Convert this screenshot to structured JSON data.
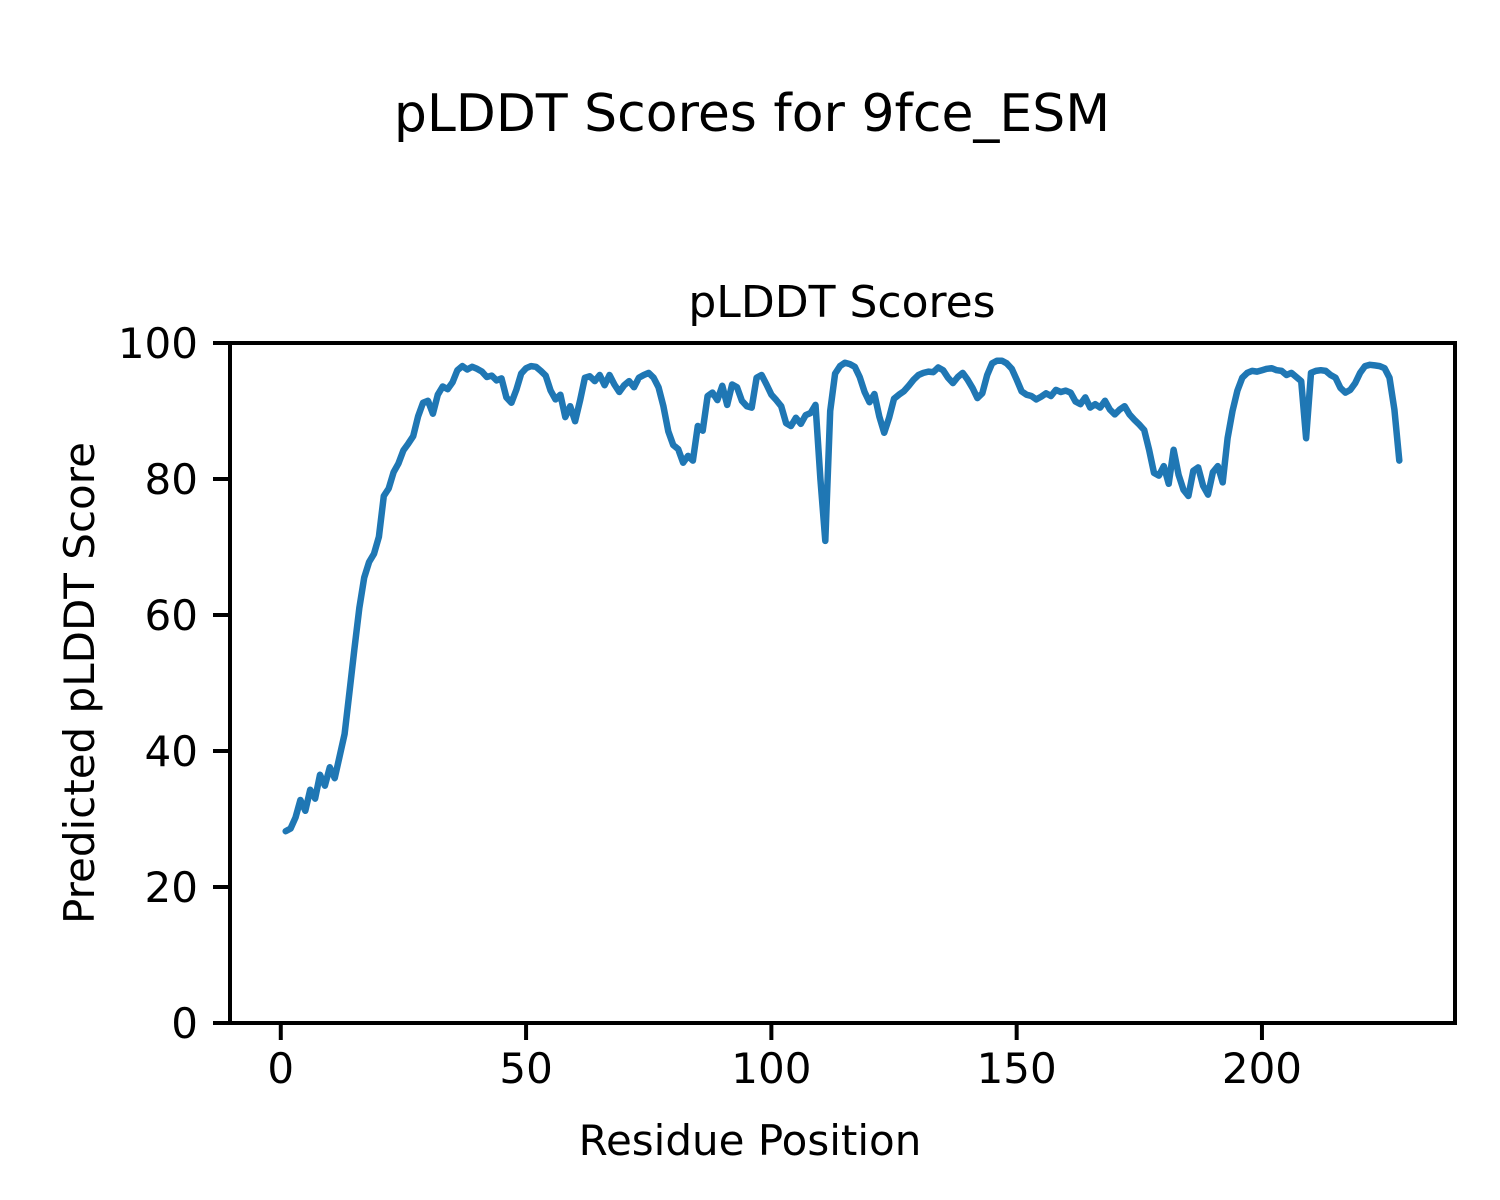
{
  "figure": {
    "suptitle": "pLDDT Scores for 9fce_ESM"
  },
  "chart_data": {
    "type": "line",
    "title": "pLDDT Scores",
    "xlabel": "Residue Position",
    "ylabel": "Predicted pLDDT Score",
    "xlim": [
      -10.35,
      239.35
    ],
    "ylim": [
      0,
      100
    ],
    "xticks": [
      0,
      50,
      100,
      150,
      200
    ],
    "yticks": [
      0,
      20,
      40,
      60,
      80,
      100
    ],
    "grid": false,
    "legend": "none",
    "line_color": "#1f77b4",
    "axis_color": "#000000",
    "background_color": "#ffffff",
    "series": [
      {
        "x_start": 1,
        "values": [
          28.2,
          28.6,
          30.2,
          32.8,
          31.2,
          34.3,
          33.0,
          36.5,
          34.9,
          37.6,
          36.0,
          39.2,
          42.5,
          48.7,
          55.0,
          61.0,
          65.5,
          67.8,
          69.0,
          71.5,
          77.5,
          78.6,
          81.0,
          82.3,
          84.2,
          85.2,
          86.3,
          89.2,
          91.2,
          91.5,
          89.6,
          92.4,
          93.6,
          93.2,
          94.2,
          96.0,
          96.6,
          96.1,
          96.5,
          96.2,
          95.8,
          95.0,
          95.2,
          94.5,
          94.8,
          92.0,
          91.2,
          93.1,
          95.5,
          96.3,
          96.6,
          96.5,
          95.9,
          95.2,
          93.0,
          91.7,
          92.4,
          89.1,
          90.7,
          88.5,
          91.5,
          94.9,
          95.1,
          94.4,
          95.3,
          93.8,
          95.3,
          93.9,
          92.8,
          93.8,
          94.4,
          93.5,
          94.9,
          95.3,
          95.6,
          94.9,
          93.5,
          90.7,
          87.0,
          85.0,
          84.4,
          82.4,
          83.4,
          82.7,
          87.8,
          87.1,
          92.2,
          92.7,
          91.6,
          93.7,
          90.9,
          93.9,
          93.5,
          91.5,
          90.7,
          90.5,
          94.9,
          95.3,
          93.9,
          92.4,
          91.6,
          90.7,
          88.2,
          87.8,
          89.0,
          88.1,
          89.4,
          89.7,
          90.9,
          80.0,
          70.9,
          90.0,
          95.5,
          96.6,
          97.1,
          96.9,
          96.5,
          95.0,
          92.8,
          91.3,
          92.5,
          89.2,
          86.8,
          89.0,
          91.8,
          92.4,
          92.9,
          93.7,
          94.6,
          95.3,
          95.6,
          95.8,
          95.7,
          96.4,
          96.0,
          94.9,
          94.1,
          95.0,
          95.6,
          94.6,
          93.4,
          91.9,
          92.6,
          95.3,
          97.0,
          97.4,
          97.4,
          97.0,
          96.2,
          94.6,
          92.9,
          92.4,
          92.2,
          91.7,
          92.1,
          92.6,
          92.2,
          93.1,
          92.8,
          93.0,
          92.7,
          91.4,
          91.0,
          92.0,
          90.5,
          91.0,
          90.5,
          91.5,
          90.2,
          89.5,
          90.2,
          90.7,
          89.5,
          88.7,
          88.0,
          87.2,
          84.3,
          80.9,
          80.5,
          81.9,
          79.3,
          84.3,
          80.6,
          78.4,
          77.5,
          81.2,
          81.7,
          79.0,
          77.7,
          81.0,
          81.9,
          79.5,
          86.0,
          90.0,
          93.0,
          94.9,
          95.6,
          95.9,
          95.8,
          96.0,
          96.2,
          96.3,
          96.0,
          95.9,
          95.3,
          95.6,
          95.0,
          94.4,
          86.0,
          95.6,
          95.9,
          96.0,
          95.9,
          95.3,
          94.9,
          93.4,
          92.7,
          93.1,
          94.1,
          95.6,
          96.6,
          96.8,
          96.7,
          96.6,
          96.3,
          94.9,
          90.2,
          82.7
        ]
      }
    ]
  }
}
